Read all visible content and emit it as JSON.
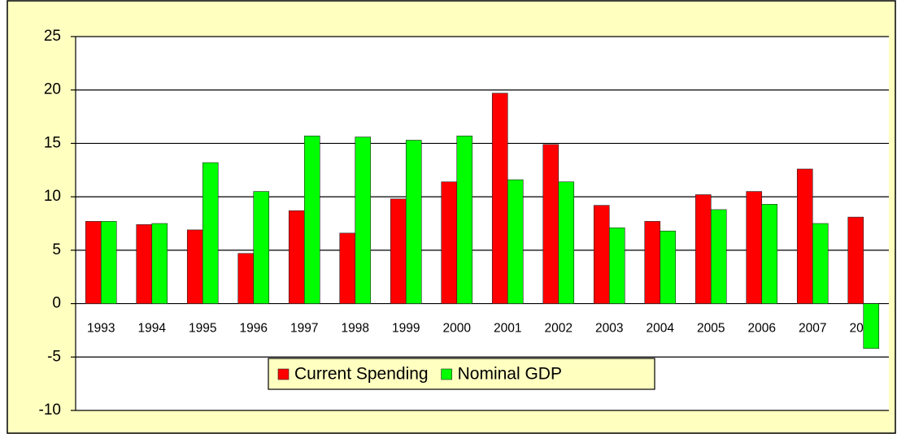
{
  "chart_data": {
    "type": "bar",
    "categories": [
      "1993",
      "1994",
      "1995",
      "1996",
      "1997",
      "1998",
      "1999",
      "2000",
      "2001",
      "2002",
      "2003",
      "2004",
      "2005",
      "2006",
      "2007",
      "2008"
    ],
    "series": [
      {
        "name": "Current Spending",
        "color": "#ff0000",
        "values": [
          7.7,
          7.4,
          6.9,
          4.7,
          8.7,
          6.6,
          9.8,
          11.4,
          19.7,
          14.9,
          9.2,
          7.7,
          10.2,
          10.5,
          12.6,
          8.1
        ]
      },
      {
        "name": "Nominal GDP",
        "color": "#00ff00",
        "values": [
          7.7,
          7.5,
          13.2,
          10.5,
          15.7,
          15.6,
          15.3,
          15.7,
          11.6,
          11.4,
          7.1,
          6.8,
          8.8,
          9.3,
          7.5,
          -4.2
        ]
      }
    ],
    "ylim": [
      -10,
      25
    ],
    "yticks": [
      -10,
      -5,
      0,
      5,
      10,
      15,
      20,
      25
    ],
    "grid": true,
    "legend": "bottom"
  }
}
